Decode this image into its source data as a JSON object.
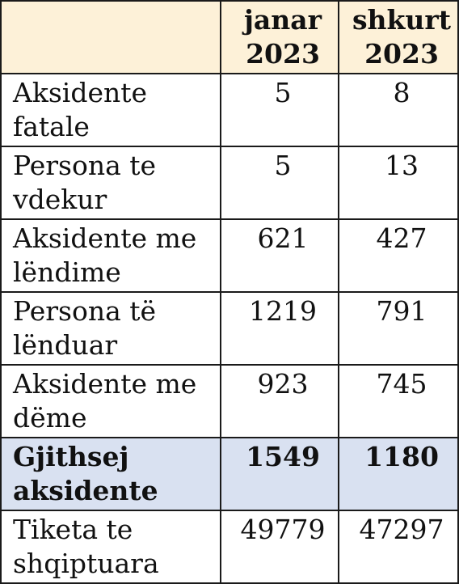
{
  "header": {
    "col1": "janar 2023",
    "col2": "shkurt 2023"
  },
  "rows": [
    {
      "label": "Aksidente fatale",
      "v1": "5",
      "v2": "8"
    },
    {
      "label": "Persona te vdekur",
      "v1": "5",
      "v2": "13"
    },
    {
      "label": "Aksidente me lëndime",
      "v1": "621",
      "v2": "427"
    },
    {
      "label": "Persona të lënduar",
      "v1": "1219",
      "v2": "791"
    },
    {
      "label": "Aksidente me dëme",
      "v1": "923",
      "v2": "745"
    },
    {
      "label": "Gjithsej aksidente",
      "v1": "1549",
      "v2": "1180"
    },
    {
      "label": "Tiketa te shqiptuara",
      "v1": "49779",
      "v2": "47297"
    }
  ],
  "colors": {
    "header_bg": "#fdf1d8",
    "total_row_bg": "#d9e1f1",
    "border": "#1a1a1a"
  }
}
